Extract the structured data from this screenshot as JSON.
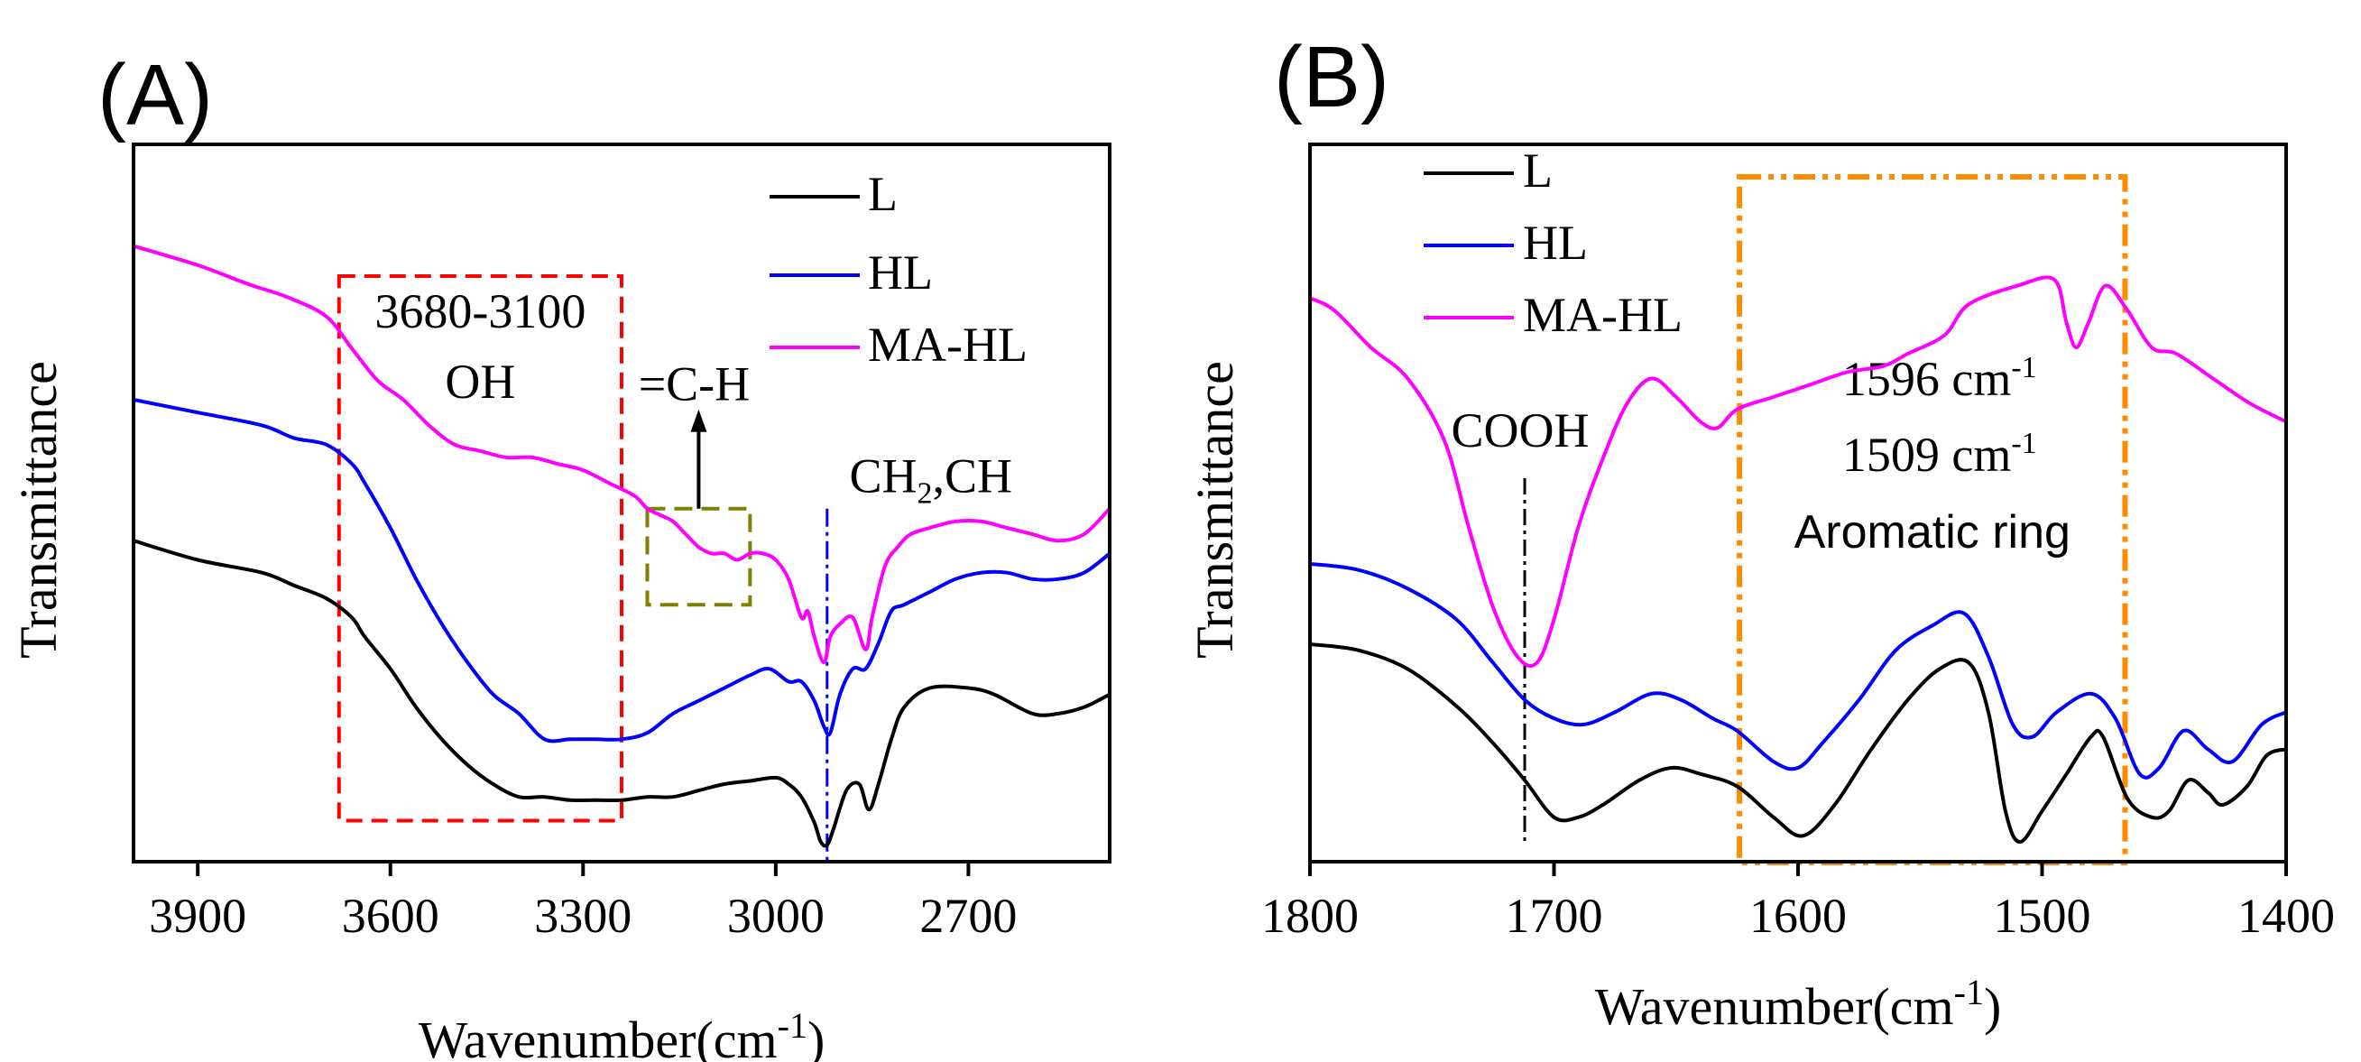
{
  "chart_data": [
    {
      "type": "line",
      "panel_label": "(A)",
      "xlabel": "Wavenumber(cm",
      "xlabel_sup": "-1",
      "xlabel_end": ")",
      "ylabel": "Transmittance",
      "xlim": [
        4000,
        2480
      ],
      "ylim": [
        0,
        100
      ],
      "x_ticks": [
        3900,
        3600,
        3300,
        3000,
        2700
      ],
      "legend": [
        "L",
        "HL",
        "MA-HL"
      ],
      "legend_position": "top-right",
      "series": [
        {
          "name": "L",
          "color": "#000000",
          "points": [
            [
              4000,
              48
            ],
            [
              3900,
              45
            ],
            [
              3800,
              43
            ],
            [
              3750,
              41
            ],
            [
              3700,
              39
            ],
            [
              3660,
              36
            ],
            [
              3640,
              33
            ],
            [
              3600,
              28
            ],
            [
              3560,
              22
            ],
            [
              3520,
              17
            ],
            [
              3480,
              13
            ],
            [
              3440,
              10
            ],
            [
              3400,
              8
            ],
            [
              3360,
              8
            ],
            [
              3320,
              7.5
            ],
            [
              3280,
              7.5
            ],
            [
              3240,
              7.5
            ],
            [
              3200,
              8
            ],
            [
              3160,
              8
            ],
            [
              3120,
              9
            ],
            [
              3080,
              10
            ],
            [
              3040,
              10.5
            ],
            [
              3000,
              11
            ],
            [
              2980,
              10
            ],
            [
              2960,
              8
            ],
            [
              2940,
              4
            ],
            [
              2930,
              1
            ],
            [
              2920,
              0.5
            ],
            [
              2910,
              3
            ],
            [
              2890,
              9
            ],
            [
              2870,
              10
            ],
            [
              2855,
              6
            ],
            [
              2840,
              10
            ],
            [
              2820,
              17
            ],
            [
              2800,
              22
            ],
            [
              2760,
              25
            ],
            [
              2700,
              25
            ],
            [
              2660,
              24
            ],
            [
              2600,
              21
            ],
            [
              2560,
              21
            ],
            [
              2520,
              22
            ],
            [
              2480,
              24
            ]
          ]
        },
        {
          "name": "HL",
          "color": "#0000ff",
          "points": [
            [
              4000,
              70
            ],
            [
              3900,
              68
            ],
            [
              3800,
              66
            ],
            [
              3750,
              64
            ],
            [
              3700,
              63
            ],
            [
              3660,
              60
            ],
            [
              3640,
              57
            ],
            [
              3600,
              50
            ],
            [
              3560,
              42
            ],
            [
              3520,
              35
            ],
            [
              3480,
              29
            ],
            [
              3440,
              24
            ],
            [
              3400,
              21
            ],
            [
              3360,
              17
            ],
            [
              3320,
              17
            ],
            [
              3280,
              17
            ],
            [
              3240,
              17
            ],
            [
              3200,
              18
            ],
            [
              3160,
              21
            ],
            [
              3120,
              23
            ],
            [
              3080,
              25
            ],
            [
              3040,
              27
            ],
            [
              3010,
              28
            ],
            [
              2980,
              26
            ],
            [
              2960,
              26
            ],
            [
              2940,
              23
            ],
            [
              2925,
              19
            ],
            [
              2915,
              18
            ],
            [
              2900,
              24
            ],
            [
              2880,
              28
            ],
            [
              2860,
              28
            ],
            [
              2840,
              32
            ],
            [
              2820,
              37
            ],
            [
              2800,
              38
            ],
            [
              2760,
              40
            ],
            [
              2720,
              42
            ],
            [
              2680,
              43
            ],
            [
              2640,
              43
            ],
            [
              2600,
              42
            ],
            [
              2560,
              42
            ],
            [
              2520,
              43
            ],
            [
              2480,
              46
            ]
          ]
        },
        {
          "name": "MA-HL",
          "color": "#ff00ff",
          "points": [
            [
              4000,
              94
            ],
            [
              3900,
              91
            ],
            [
              3820,
              88
            ],
            [
              3760,
              86
            ],
            [
              3700,
              83
            ],
            [
              3660,
              78
            ],
            [
              3620,
              73
            ],
            [
              3580,
              70
            ],
            [
              3540,
              66
            ],
            [
              3500,
              63
            ],
            [
              3460,
              62
            ],
            [
              3420,
              61
            ],
            [
              3380,
              61
            ],
            [
              3340,
              60
            ],
            [
              3300,
              59
            ],
            [
              3260,
              57
            ],
            [
              3220,
              55
            ],
            [
              3200,
              53
            ],
            [
              3180,
              52
            ],
            [
              3160,
              51
            ],
            [
              3140,
              49
            ],
            [
              3120,
              47
            ],
            [
              3100,
              46
            ],
            [
              3080,
              46
            ],
            [
              3060,
              45
            ],
            [
              3040,
              46
            ],
            [
              3020,
              46
            ],
            [
              3000,
              45
            ],
            [
              2980,
              42
            ],
            [
              2960,
              36
            ],
            [
              2950,
              37
            ],
            [
              2940,
              33
            ],
            [
              2925,
              29
            ],
            [
              2915,
              33
            ],
            [
              2900,
              35
            ],
            [
              2880,
              36
            ],
            [
              2860,
              31
            ],
            [
              2850,
              36
            ],
            [
              2830,
              44
            ],
            [
              2810,
              47
            ],
            [
              2790,
              49
            ],
            [
              2760,
              50
            ],
            [
              2720,
              51
            ],
            [
              2680,
              51
            ],
            [
              2640,
              50
            ],
            [
              2600,
              49
            ],
            [
              2560,
              48
            ],
            [
              2520,
              49
            ],
            [
              2480,
              53
            ]
          ]
        }
      ],
      "annotations": [
        {
          "name": "oh-box",
          "label_line1": "3680-3100",
          "label_line2": "OH",
          "x_range": [
            3680,
            3240
          ],
          "y_range": [
            5,
            90
          ],
          "color": "#ff0000"
        },
        {
          "name": "ch-box",
          "label": "=C-H",
          "x_range": [
            3200,
            3040
          ],
          "y_range": [
            38,
            53
          ],
          "color": "#808000"
        },
        {
          "name": "ch2-line",
          "label_main": "CH",
          "label_sub": "2",
          "label_tail": ",CH",
          "x": 2920,
          "color": "#0000ff"
        }
      ]
    },
    {
      "type": "line",
      "panel_label": "(B)",
      "xlabel": "Wavenumber(cm",
      "xlabel_sup": "-1",
      "xlabel_end": ")",
      "ylabel": "Transmittance",
      "xlim": [
        1800,
        1400
      ],
      "ylim": [
        0,
        100
      ],
      "x_ticks": [
        1800,
        1700,
        1600,
        1500,
        1400
      ],
      "legend": [
        "L",
        "HL",
        "MA-HL"
      ],
      "legend_position": "top-left",
      "series": [
        {
          "name": "L",
          "color": "#000000",
          "points": [
            [
              1800,
              33
            ],
            [
              1780,
              32
            ],
            [
              1760,
              29
            ],
            [
              1740,
              23
            ],
            [
              1725,
              17
            ],
            [
              1712,
              11
            ],
            [
              1700,
              5
            ],
            [
              1690,
              5
            ],
            [
              1680,
              7
            ],
            [
              1665,
              11
            ],
            [
              1652,
              13
            ],
            [
              1640,
              12
            ],
            [
              1625,
              10
            ],
            [
              1610,
              5
            ],
            [
              1598,
              2
            ],
            [
              1585,
              7
            ],
            [
              1570,
              16
            ],
            [
              1555,
              24
            ],
            [
              1542,
              29
            ],
            [
              1530,
              30
            ],
            [
              1522,
              22
            ],
            [
              1515,
              6
            ],
            [
              1509,
              1
            ],
            [
              1500,
              6
            ],
            [
              1490,
              12
            ],
            [
              1480,
              18
            ],
            [
              1475,
              18
            ],
            [
              1465,
              8
            ],
            [
              1455,
              5
            ],
            [
              1448,
              6
            ],
            [
              1440,
              11
            ],
            [
              1432,
              9
            ],
            [
              1426,
              7
            ],
            [
              1416,
              10
            ],
            [
              1408,
              15
            ],
            [
              1400,
              16
            ]
          ]
        },
        {
          "name": "HL",
          "color": "#0000ff",
          "points": [
            [
              1800,
              46
            ],
            [
              1780,
              45
            ],
            [
              1760,
              42
            ],
            [
              1740,
              37
            ],
            [
              1725,
              30
            ],
            [
              1712,
              24
            ],
            [
              1700,
              21
            ],
            [
              1688,
              20
            ],
            [
              1675,
              22
            ],
            [
              1660,
              25
            ],
            [
              1648,
              24
            ],
            [
              1635,
              21
            ],
            [
              1625,
              19
            ],
            [
              1610,
              14
            ],
            [
              1600,
              13
            ],
            [
              1590,
              17
            ],
            [
              1575,
              24
            ],
            [
              1560,
              32
            ],
            [
              1545,
              36
            ],
            [
              1532,
              38
            ],
            [
              1522,
              31
            ],
            [
              1512,
              20
            ],
            [
              1504,
              18
            ],
            [
              1494,
              22
            ],
            [
              1480,
              25
            ],
            [
              1470,
              21
            ],
            [
              1460,
              12
            ],
            [
              1452,
              13
            ],
            [
              1442,
              19
            ],
            [
              1432,
              16
            ],
            [
              1422,
              14
            ],
            [
              1410,
              20
            ],
            [
              1400,
              22
            ]
          ]
        },
        {
          "name": "MA-HL",
          "color": "#ff00ff",
          "points": [
            [
              1800,
              89
            ],
            [
              1790,
              87
            ],
            [
              1775,
              81
            ],
            [
              1760,
              76
            ],
            [
              1745,
              66
            ],
            [
              1735,
              52
            ],
            [
              1725,
              39
            ],
            [
              1715,
              31
            ],
            [
              1707,
              30
            ],
            [
              1700,
              37
            ],
            [
              1690,
              52
            ],
            [
              1680,
              63
            ],
            [
              1670,
              72
            ],
            [
              1660,
              76
            ],
            [
              1650,
              73
            ],
            [
              1640,
              69
            ],
            [
              1633,
              68
            ],
            [
              1625,
              71
            ],
            [
              1610,
              73
            ],
            [
              1595,
              75
            ],
            [
              1580,
              77
            ],
            [
              1565,
              78
            ],
            [
              1555,
              80
            ],
            [
              1540,
              83
            ],
            [
              1530,
              88
            ],
            [
              1510,
              91
            ],
            [
              1495,
              92
            ],
            [
              1490,
              85
            ],
            [
              1486,
              81
            ],
            [
              1481,
              85
            ],
            [
              1474,
              91
            ],
            [
              1465,
              87
            ],
            [
              1455,
              81
            ],
            [
              1445,
              80
            ],
            [
              1430,
              76
            ],
            [
              1415,
              72
            ],
            [
              1400,
              69
            ]
          ]
        }
      ],
      "annotations": [
        {
          "name": "cooh-line",
          "label": "COOH",
          "x": 1712,
          "color": "#000000"
        },
        {
          "name": "aromatic-box",
          "label_line1": "1596 cm",
          "label_line1_sup": "-1",
          "label_line2": "1509 cm",
          "label_line2_sup": "-1",
          "label_line3": "Aromatic ring",
          "x_range": [
            1624,
            1466
          ],
          "y_range": [
            0,
            97
          ],
          "color": "#ff8c00"
        }
      ]
    }
  ]
}
